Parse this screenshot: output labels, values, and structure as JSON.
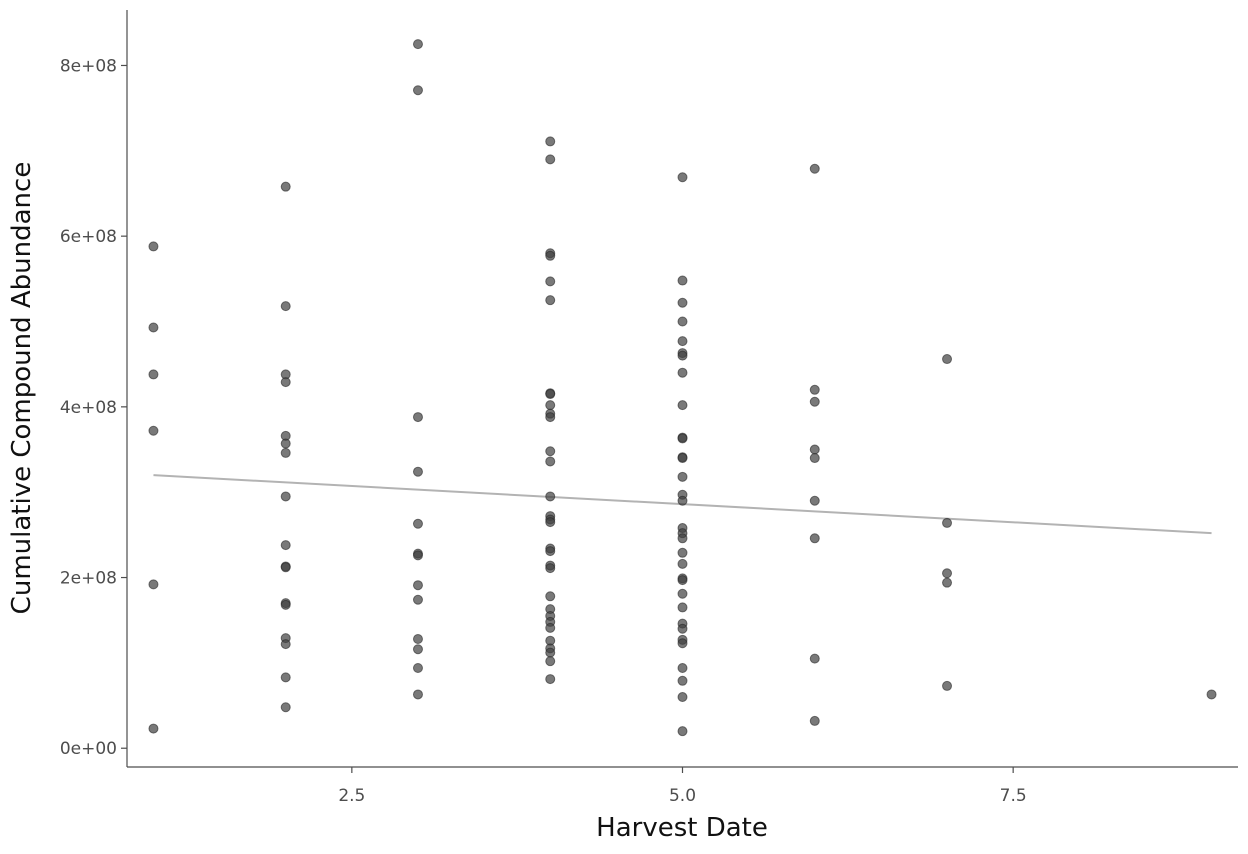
{
  "chart_data": {
    "type": "scatter",
    "xlabel": "Harvest Date",
    "ylabel": "Cumulative Compound Abundance",
    "xlim": [
      0.8,
      9.2
    ],
    "ylim": [
      -22000000.0,
      865000000.0
    ],
    "x_ticks": [
      2.5,
      5.0,
      7.5
    ],
    "x_tick_labels": [
      "2.5",
      "5.0",
      "7.5"
    ],
    "y_ticks": [
      0,
      200000000,
      400000000,
      600000000,
      800000000
    ],
    "y_tick_labels": [
      "0e+00",
      "2e+08",
      "4e+08",
      "6e+08",
      "8e+08"
    ],
    "grid": false,
    "point_color": "#404040",
    "trend_color": "#b3b3b3",
    "axis_color": "#4d4d4d",
    "trend_line": {
      "x": [
        1,
        9
      ],
      "y": [
        320000000,
        252000000
      ]
    },
    "points": [
      [
        1,
        588000000
      ],
      [
        1,
        493000000
      ],
      [
        1,
        438000000
      ],
      [
        1,
        372000000
      ],
      [
        1,
        192000000
      ],
      [
        1,
        23000000
      ],
      [
        2,
        658000000
      ],
      [
        2,
        518000000
      ],
      [
        2,
        438000000
      ],
      [
        2,
        429000000
      ],
      [
        2,
        366000000
      ],
      [
        2,
        357000000
      ],
      [
        2,
        346000000
      ],
      [
        2,
        295000000
      ],
      [
        2,
        238000000
      ],
      [
        2,
        213000000
      ],
      [
        2,
        212000000
      ],
      [
        2,
        170000000
      ],
      [
        2,
        168000000
      ],
      [
        2,
        129000000
      ],
      [
        2,
        122000000
      ],
      [
        2,
        83000000
      ],
      [
        2,
        48000000
      ],
      [
        3,
        825000000
      ],
      [
        3,
        771000000
      ],
      [
        3,
        388000000
      ],
      [
        3,
        324000000
      ],
      [
        3,
        263000000
      ],
      [
        3,
        228000000
      ],
      [
        3,
        226000000
      ],
      [
        3,
        191000000
      ],
      [
        3,
        174000000
      ],
      [
        3,
        128000000
      ],
      [
        3,
        116000000
      ],
      [
        3,
        94000000
      ],
      [
        3,
        63000000
      ],
      [
        4,
        711000000
      ],
      [
        4,
        690000000
      ],
      [
        4,
        580000000
      ],
      [
        4,
        577000000
      ],
      [
        4,
        547000000
      ],
      [
        4,
        525000000
      ],
      [
        4,
        416000000
      ],
      [
        4,
        415000000
      ],
      [
        4,
        402000000
      ],
      [
        4,
        392000000
      ],
      [
        4,
        388000000
      ],
      [
        4,
        348000000
      ],
      [
        4,
        336000000
      ],
      [
        4,
        295000000
      ],
      [
        4,
        272000000
      ],
      [
        4,
        268000000
      ],
      [
        4,
        265000000
      ],
      [
        4,
        234000000
      ],
      [
        4,
        231000000
      ],
      [
        4,
        214000000
      ],
      [
        4,
        211000000
      ],
      [
        4,
        178000000
      ],
      [
        4,
        163000000
      ],
      [
        4,
        155000000
      ],
      [
        4,
        148000000
      ],
      [
        4,
        141000000
      ],
      [
        4,
        126000000
      ],
      [
        4,
        117000000
      ],
      [
        4,
        112000000
      ],
      [
        4,
        102000000
      ],
      [
        4,
        81000000
      ],
      [
        5,
        669000000
      ],
      [
        5,
        548000000
      ],
      [
        5,
        522000000
      ],
      [
        5,
        500000000
      ],
      [
        5,
        477000000
      ],
      [
        5,
        463000000
      ],
      [
        5,
        460000000
      ],
      [
        5,
        440000000
      ],
      [
        5,
        402000000
      ],
      [
        5,
        364000000
      ],
      [
        5,
        363000000
      ],
      [
        5,
        341000000
      ],
      [
        5,
        340000000
      ],
      [
        5,
        318000000
      ],
      [
        5,
        297000000
      ],
      [
        5,
        290000000
      ],
      [
        5,
        258000000
      ],
      [
        5,
        252000000
      ],
      [
        5,
        246000000
      ],
      [
        5,
        229000000
      ],
      [
        5,
        216000000
      ],
      [
        5,
        199000000
      ],
      [
        5,
        197000000
      ],
      [
        5,
        181000000
      ],
      [
        5,
        165000000
      ],
      [
        5,
        146000000
      ],
      [
        5,
        140000000
      ],
      [
        5,
        127000000
      ],
      [
        5,
        123000000
      ],
      [
        5,
        94000000
      ],
      [
        5,
        79000000
      ],
      [
        5,
        60000000
      ],
      [
        5,
        20000000
      ],
      [
        6,
        679000000
      ],
      [
        6,
        420000000
      ],
      [
        6,
        406000000
      ],
      [
        6,
        350000000
      ],
      [
        6,
        340000000
      ],
      [
        6,
        290000000
      ],
      [
        6,
        246000000
      ],
      [
        6,
        105000000
      ],
      [
        6,
        32000000
      ],
      [
        7,
        456000000
      ],
      [
        7,
        264000000
      ],
      [
        7,
        205000000
      ],
      [
        7,
        194000000
      ],
      [
        7,
        73000000
      ],
      [
        9,
        63000000
      ]
    ]
  }
}
